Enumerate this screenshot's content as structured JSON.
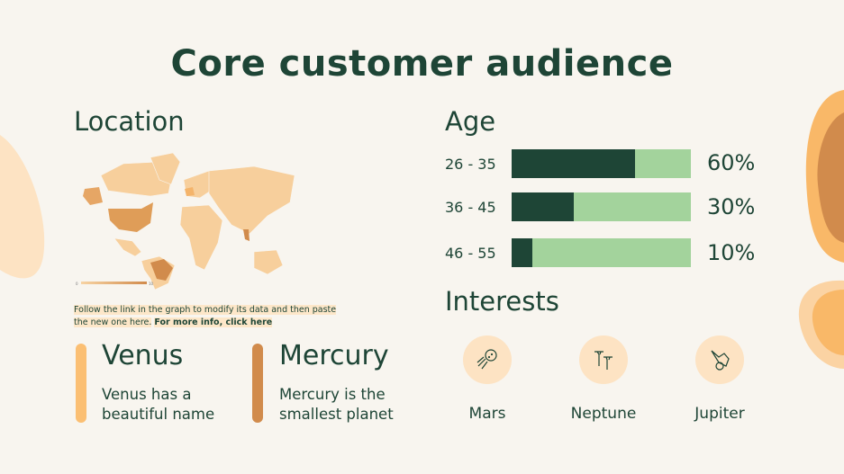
{
  "title": "Core customer audience",
  "location": {
    "heading": "Location",
    "legend_min": "0",
    "legend_max": "10",
    "caption": "Follow the link in the graph to modify its data and then paste the new one here.",
    "caption_link": "For more info, click here"
  },
  "age": {
    "heading": "Age",
    "rows": [
      {
        "label": "26 - 35",
        "percent": "60%",
        "value": 60
      },
      {
        "label": "36 - 45",
        "percent": "30%",
        "value": 30
      },
      {
        "label": "46 - 55",
        "percent": "10%",
        "value": 10
      }
    ]
  },
  "interests": {
    "heading": "Interests",
    "items": [
      {
        "label": "Mars",
        "icon": "golf-ball-icon"
      },
      {
        "label": "Neptune",
        "icon": "golf-tees-icon"
      },
      {
        "label": "Jupiter",
        "icon": "golf-glove-icon"
      }
    ]
  },
  "planets": [
    {
      "name": "Venus",
      "desc1": "Venus has a",
      "desc2": "beautiful name",
      "color": "#fbbf73"
    },
    {
      "name": "Mercury",
      "desc1": "Mercury is the",
      "desc2": "smallest planet",
      "color": "#d18b4c"
    }
  ],
  "colors": {
    "dark": "#1e4536",
    "light_green": "#a3d39c",
    "peach": "#fde3c3",
    "orange": "#f9b868",
    "brown": "#d18b4c"
  }
}
